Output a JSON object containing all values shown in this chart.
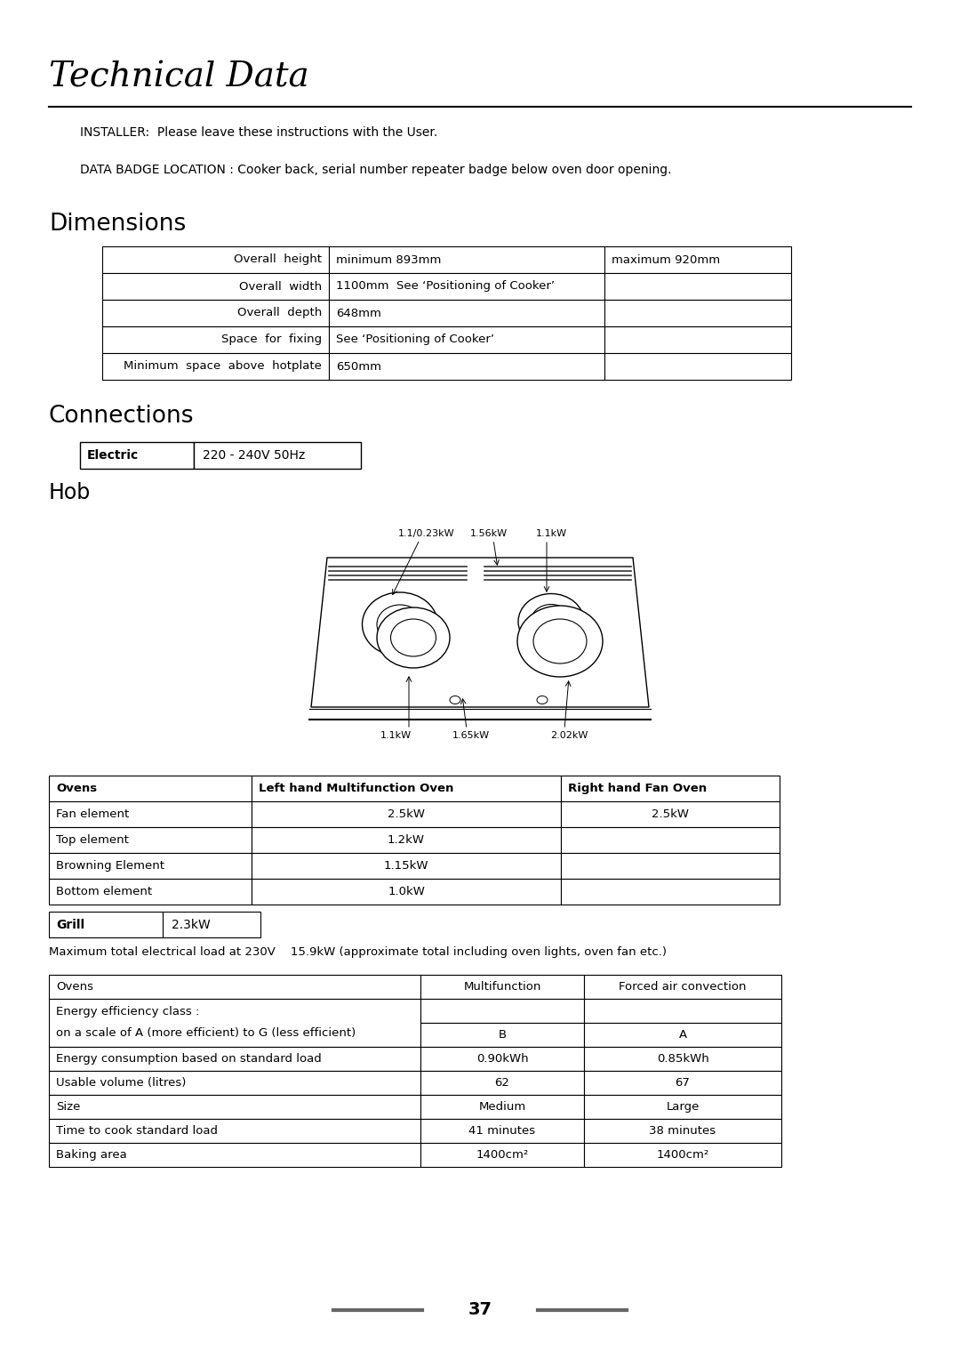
{
  "title": "Technical Data",
  "installer_text": "INSTALLER:  Please leave these instructions with the User.",
  "data_badge_text": "DATA BADGE LOCATION : Cooker back, serial number repeater badge below oven door opening.",
  "dimensions_title": "Dimensions",
  "dimensions_table": [
    [
      "Overall  height",
      "minimum 893mm",
      "maximum 920mm"
    ],
    [
      "Overall  width",
      "1100mm  See ‘Positioning of Cooker’",
      ""
    ],
    [
      "Overall  depth",
      "648mm",
      ""
    ],
    [
      "Space  for  fixing",
      "See ‘Positioning of Cooker’",
      ""
    ],
    [
      "Minimum  space  above  hotplate",
      "650mm",
      ""
    ]
  ],
  "connections_title": "Connections",
  "electric_label": "Electric",
  "electric_value": "220 - 240V 50Hz",
  "hob_title": "Hob",
  "hob_labels_top": [
    "1.1/0.23kW",
    "1.56kW",
    "1.1kW"
  ],
  "hob_labels_bottom": [
    "1.1kW",
    "1.65kW",
    "2.02kW"
  ],
  "ovens_table_headers": [
    "Ovens",
    "Left hand Multifunction Oven",
    "Right hand Fan Oven"
  ],
  "ovens_table_rows": [
    [
      "Fan element",
      "2.5kW",
      "2.5kW"
    ],
    [
      "Top element",
      "1.2kW",
      ""
    ],
    [
      "Browning Element",
      "1.15kW",
      ""
    ],
    [
      "Bottom element",
      "1.0kW",
      ""
    ]
  ],
  "grill_label": "Grill",
  "grill_value": "2.3kW",
  "max_load_text": "Maximum total electrical load at 230V    15.9kW (approximate total including oven lights, oven fan etc.)",
  "energy_table_headers": [
    "Ovens",
    "Multifunction",
    "Forced air convection"
  ],
  "energy_table_rows": [
    [
      "Energy efficiency class :",
      "",
      ""
    ],
    [
      "on a scale of A (more efficient) to G (less efficient)",
      "B",
      "A"
    ],
    [
      "Energy consumption based on standard load",
      "0.90kWh",
      "0.85kWh"
    ],
    [
      "Usable volume (litres)",
      "62",
      "67"
    ],
    [
      "Size",
      "Medium",
      "Large"
    ],
    [
      "Time to cook standard load",
      "41 minutes",
      "38 minutes"
    ],
    [
      "Baking area",
      "1400cm²",
      "1400cm²"
    ]
  ],
  "page_number": "37",
  "bg_color": "#ffffff",
  "text_color": "#000000",
  "title_fontsize": 28,
  "section_fontsize": 18,
  "body_fontsize": 9.5,
  "small_fontsize": 8.5
}
